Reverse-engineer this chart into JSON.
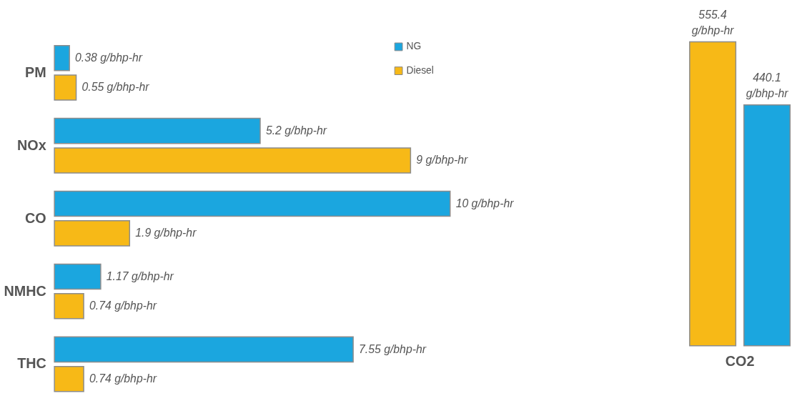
{
  "chart_data": [
    {
      "type": "bar",
      "orientation": "horizontal",
      "categories": [
        "PM",
        "NOx",
        "CO",
        "NMHC",
        "THC"
      ],
      "legend": "top right",
      "tick_labels": "y",
      "series": [
        {
          "name": "NG",
          "color": "#1ba6df",
          "values": [
            0.38,
            5.2,
            10,
            1.17,
            7.55
          ],
          "value_labels": [
            "0.38 g/bhp-hr",
            "5.2 g/bhp-hr",
            "10 g/bhp-hr",
            "1.17 g/bhp-hr",
            "7.55 g/bhp-hr"
          ]
        },
        {
          "name": "Diesel",
          "color": "#f7b917",
          "values": [
            0.55,
            9,
            1.9,
            0.74,
            0.74
          ],
          "value_labels": [
            "0.55 g/bhp-hr",
            "9 g/bhp-hr",
            "1.9 g/bhp-hr",
            "0.74 g/bhp-hr",
            "0.74 g/bhp-hr"
          ]
        }
      ]
    },
    {
      "type": "bar",
      "categories": [
        "CO2"
      ],
      "tick_labels": "x",
      "series": [
        {
          "name": "Diesel",
          "color": "#f7b917",
          "values": [
            555.4
          ],
          "value_labels": [
            "555.4 g/bhp-hr"
          ]
        },
        {
          "name": "NG",
          "color": "#1ba6df",
          "values": [
            440.1
          ],
          "value_labels": [
            "440.1 g/bhp-hr"
          ]
        }
      ]
    }
  ]
}
